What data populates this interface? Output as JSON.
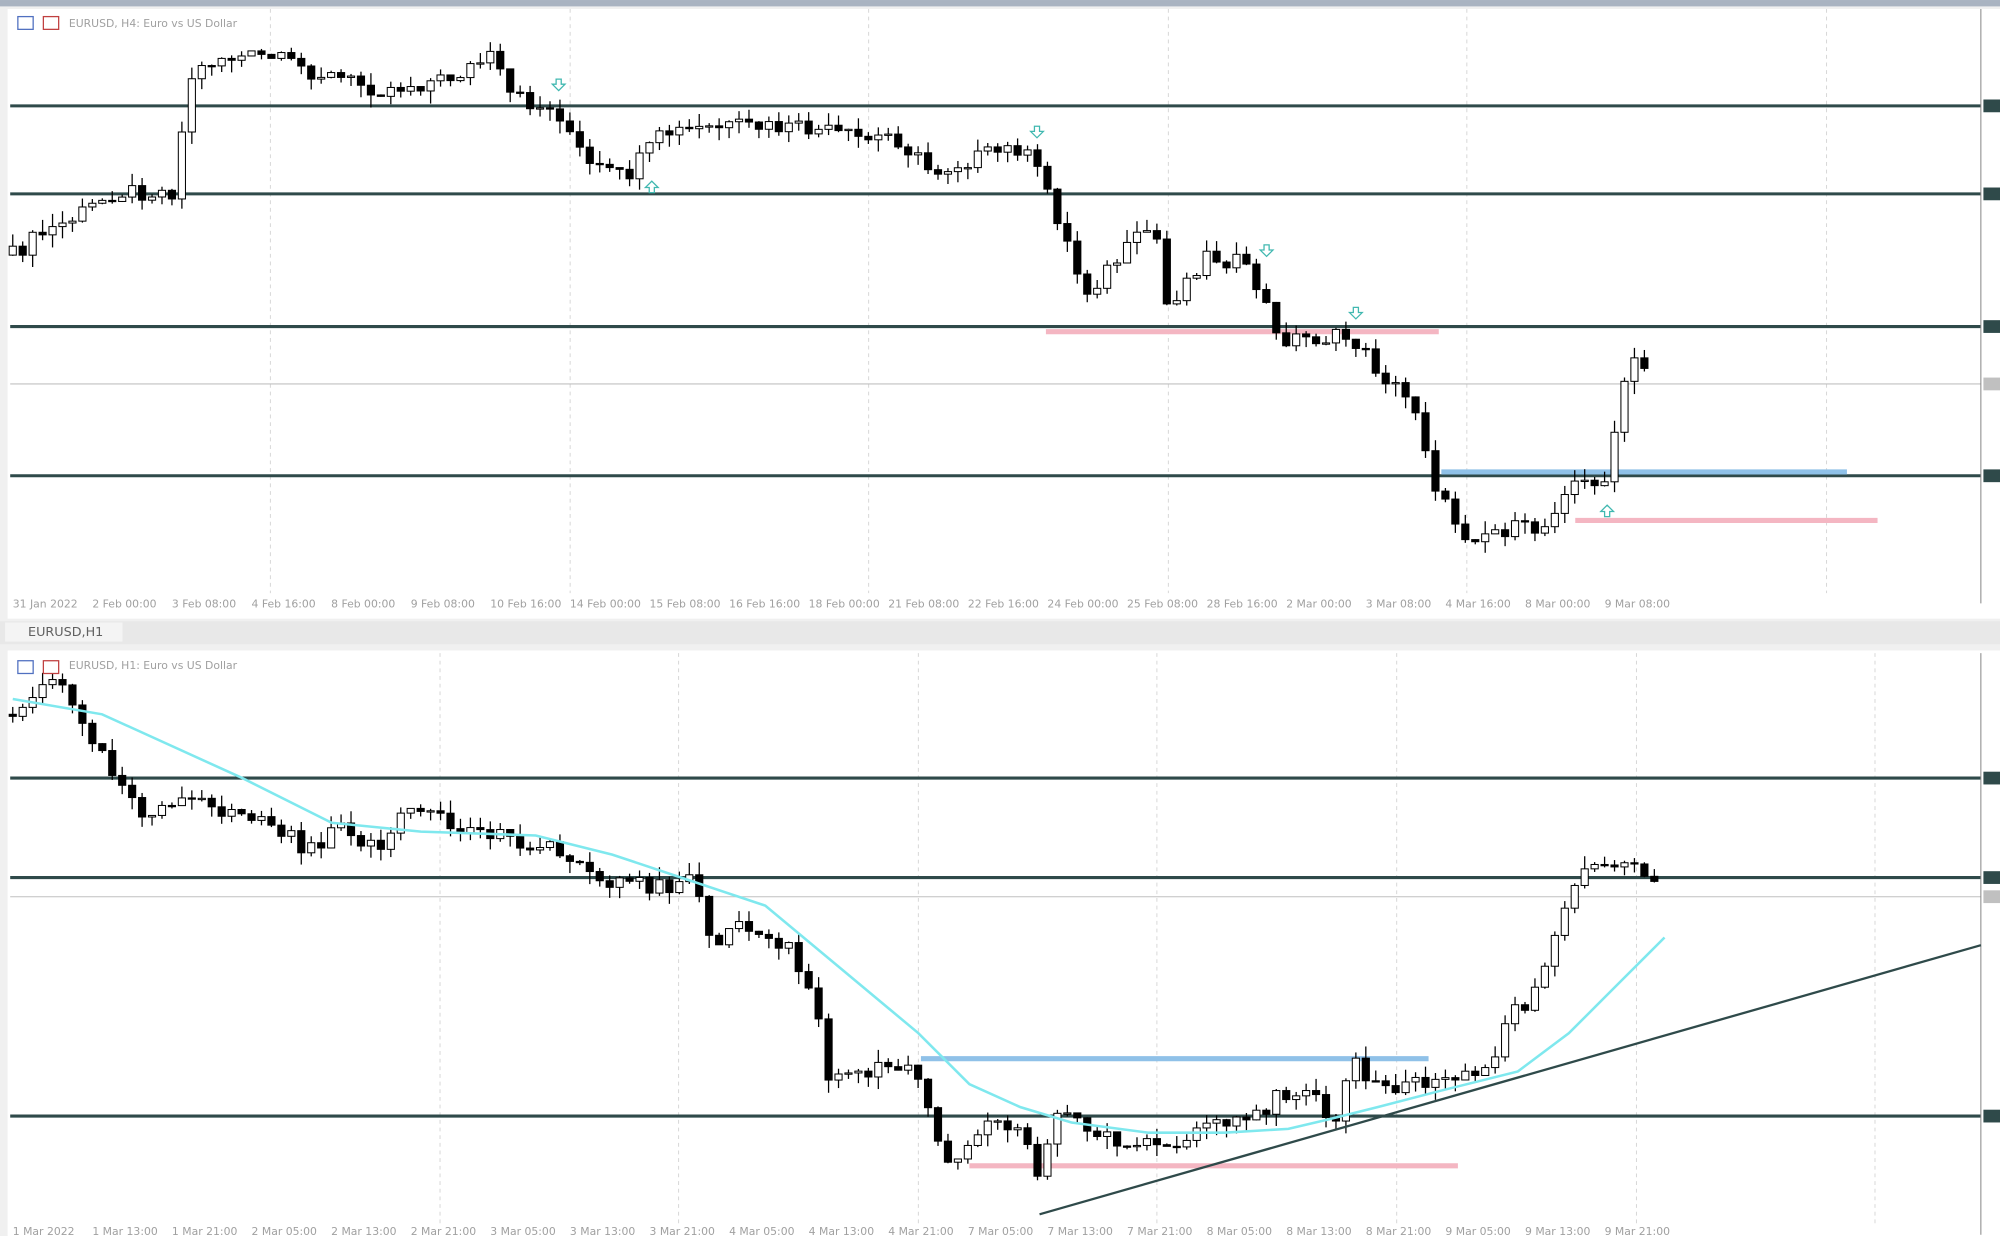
{
  "windows": [
    {
      "title": "EURUSD, H4:  Euro vs US Dollar",
      "x_labels": [
        "31 Jan 2022",
        "2 Feb 00:00",
        "3 Feb 08:00",
        "4 Feb 16:00",
        "8 Feb 00:00",
        "9 Feb 08:00",
        "10 Feb 16:00",
        "14 Feb 00:00",
        "15 Feb 08:00",
        "16 Feb 16:00",
        "18 Feb 00:00",
        "21 Feb 08:00",
        "22 Feb 16:00",
        "24 Feb 00:00",
        "25 Feb 08:00",
        "28 Feb 16:00",
        "2 Mar 00:00",
        "3 Mar 08:00",
        "4 Mar 16:00",
        "8 Mar 00:00",
        "9 Mar 08:00"
      ]
    },
    {
      "tab": "EURUSD,H1",
      "title": "EURUSD, H1:  Euro vs US Dollar",
      "x_labels": [
        "1 Mar 2022",
        "1 Mar 13:00",
        "1 Mar 21:00",
        "2 Mar 05:00",
        "2 Mar 13:00",
        "2 Mar 21:00",
        "3 Mar 05:00",
        "3 Mar 13:00",
        "3 Mar 21:00",
        "4 Mar 05:00",
        "4 Mar 13:00",
        "4 Mar 21:00",
        "7 Mar 05:00",
        "7 Mar 13:00",
        "7 Mar 21:00",
        "8 Mar 05:00",
        "8 Mar 13:00",
        "8 Mar 21:00",
        "9 Mar 05:00",
        "9 Mar 13:00",
        "9 Mar 21:00"
      ]
    }
  ]
}
